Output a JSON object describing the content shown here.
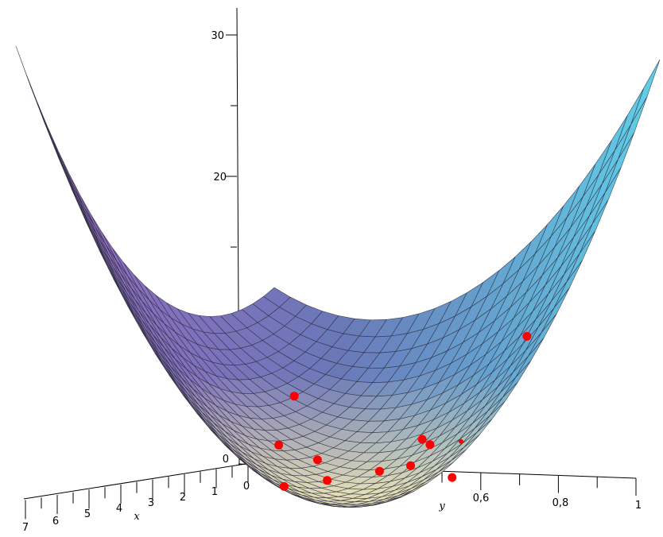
{
  "chart_data": {
    "type": "surface",
    "title": "",
    "axes": {
      "x": {
        "label": "x",
        "range": [
          0,
          7
        ],
        "ticks": [
          "0",
          "1",
          "2",
          "3",
          "4",
          "5",
          "6",
          "7"
        ]
      },
      "y": {
        "label": "y",
        "range": [
          0,
          1
        ],
        "ticks": [
          "0,6",
          "0,8",
          "1"
        ]
      },
      "z": {
        "label": "",
        "range": [
          0,
          32
        ],
        "ticks": [
          "0",
          "20",
          "30"
        ]
      }
    },
    "surface": {
      "shape": "paraboloid bowl",
      "colormap": [
        "#9a68c0",
        "#6a78b8",
        "#60d0e8",
        "#efe8b5"
      ],
      "mesh": true
    },
    "points": {
      "color": "#ff0000",
      "values": [
        {
          "x": 0.5,
          "y": 0.16,
          "z": 5.2
        },
        {
          "x": 0.5,
          "y": 0.12,
          "z": 1.7
        },
        {
          "x": 0.5,
          "y": 0.22,
          "z": 0.75
        },
        {
          "x": 3.0,
          "y": 0.45,
          "z": 0.5
        },
        {
          "x": 3.5,
          "y": 0.38,
          "z": 0.2
        },
        {
          "x": 0.5,
          "y": 0.38,
          "z": 0.1
        },
        {
          "x": 0.5,
          "y": 0.46,
          "z": 0.57
        },
        {
          "x": 0.5,
          "y": 0.49,
          "z": 2.46
        },
        {
          "x": 0.5,
          "y": 0.51,
          "z": 2.1
        },
        {
          "x": 2.0,
          "y": 0.69,
          "z": 0.54
        },
        {
          "x": 0.5,
          "y": 0.76,
          "z": 10.0
        },
        {
          "x": 0.5,
          "y": 0.59,
          "z": 2.4
        }
      ]
    }
  }
}
